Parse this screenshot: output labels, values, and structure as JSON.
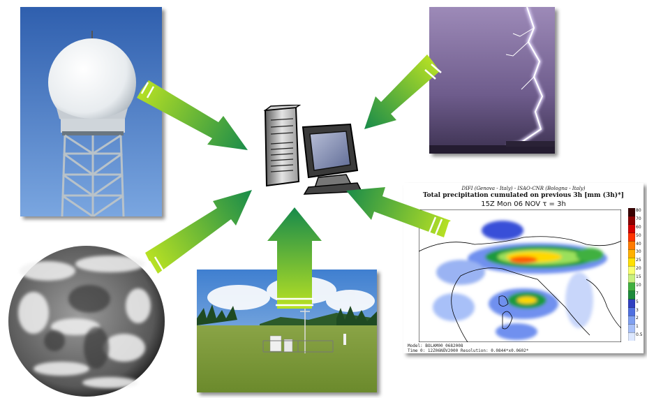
{
  "images": {
    "radar": "radar-tower",
    "lightning": "lightning-storm",
    "satellite": "satellite-earth",
    "station": "weather-station-field",
    "computer": "computer-workstation",
    "model": "precipitation-forecast-map"
  },
  "precipitation_map": {
    "header_line1": "DIFI (Genova - Italy) - ISAO-CNR (Bologna - Italy)",
    "header_line2": "Total precipitation cumulated on previous 3h [mm (3h)*]",
    "header_line3": "15Z Mon 06 NOV  τ = 3h",
    "footer_line1": "Model: BOLAM00_0682008",
    "footer_line2": "Time 0: 12Z06NOV2000     Resolution: 0.0844*x0.0602*",
    "colorbar_labels": [
      "80",
      "70",
      "60",
      "50",
      "40",
      "30",
      "25",
      "20",
      "15",
      "10",
      "7",
      "5",
      "3",
      "2",
      "1",
      "0.5"
    ],
    "colorbar_colors": [
      "#3a0000",
      "#8b0000",
      "#d40000",
      "#ff3300",
      "#ff7a00",
      "#ffb000",
      "#ffe000",
      "#f8ff70",
      "#c8f080",
      "#40b040",
      "#1e8a3c",
      "#3040c0",
      "#5070e0",
      "#80a0f0",
      "#a8c0f8",
      "#dde8ff"
    ]
  },
  "arrow_colors": {
    "start": "#b6e024",
    "end": "#1a8c4a"
  }
}
